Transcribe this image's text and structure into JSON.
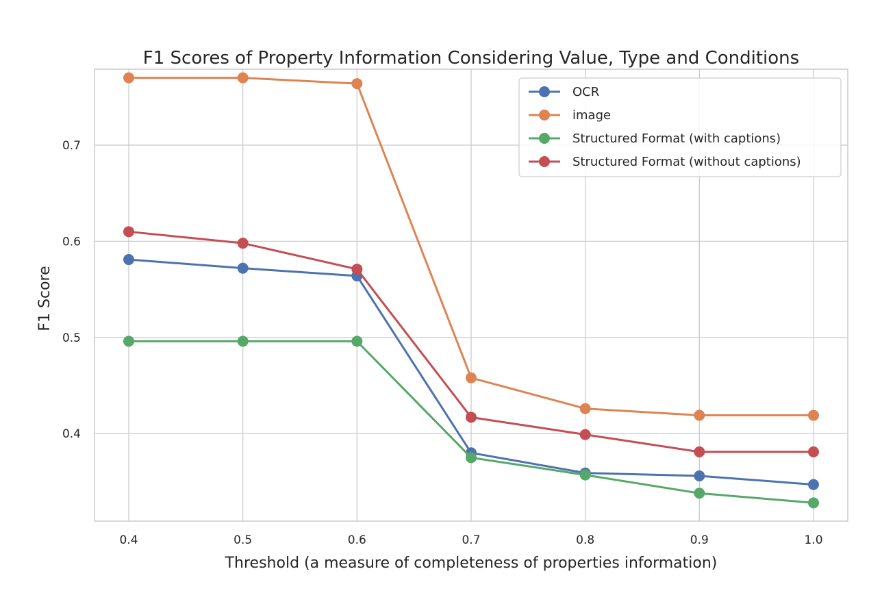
{
  "chart_data": {
    "type": "line",
    "title": "F1 Scores of Property Information Considering Value, Type and Conditions",
    "xlabel": "Threshold (a measure of completeness of properties information)",
    "ylabel": "F1 Score",
    "x": [
      0.4,
      0.5,
      0.6,
      0.7,
      0.8,
      0.9,
      1.0
    ],
    "xticks": [
      "0.4",
      "0.5",
      "0.6",
      "0.7",
      "0.8",
      "0.9",
      "1.0"
    ],
    "yticks": [
      "0.4",
      "0.5",
      "0.6",
      "0.7"
    ],
    "ytick_values": [
      0.4,
      0.5,
      0.6,
      0.7
    ],
    "xlim": [
      0.37,
      1.03
    ],
    "ylim": [
      0.309,
      0.779
    ],
    "grid": true,
    "legend_position": "top-right",
    "series": [
      {
        "name": "OCR",
        "color": "#4c72b0",
        "values": [
          0.581,
          0.572,
          0.564,
          0.38,
          0.359,
          0.356,
          0.347
        ]
      },
      {
        "name": "image",
        "color": "#dd8452",
        "values": [
          0.77,
          0.77,
          0.764,
          0.458,
          0.426,
          0.419,
          0.419
        ]
      },
      {
        "name": "Structured Format (with captions)",
        "color": "#55a868",
        "values": [
          0.496,
          0.496,
          0.496,
          0.375,
          0.357,
          0.338,
          0.328
        ]
      },
      {
        "name": "Structured Format (without captions)",
        "color": "#c44e52",
        "values": [
          0.61,
          0.598,
          0.571,
          0.417,
          0.399,
          0.381,
          0.381
        ]
      }
    ]
  }
}
